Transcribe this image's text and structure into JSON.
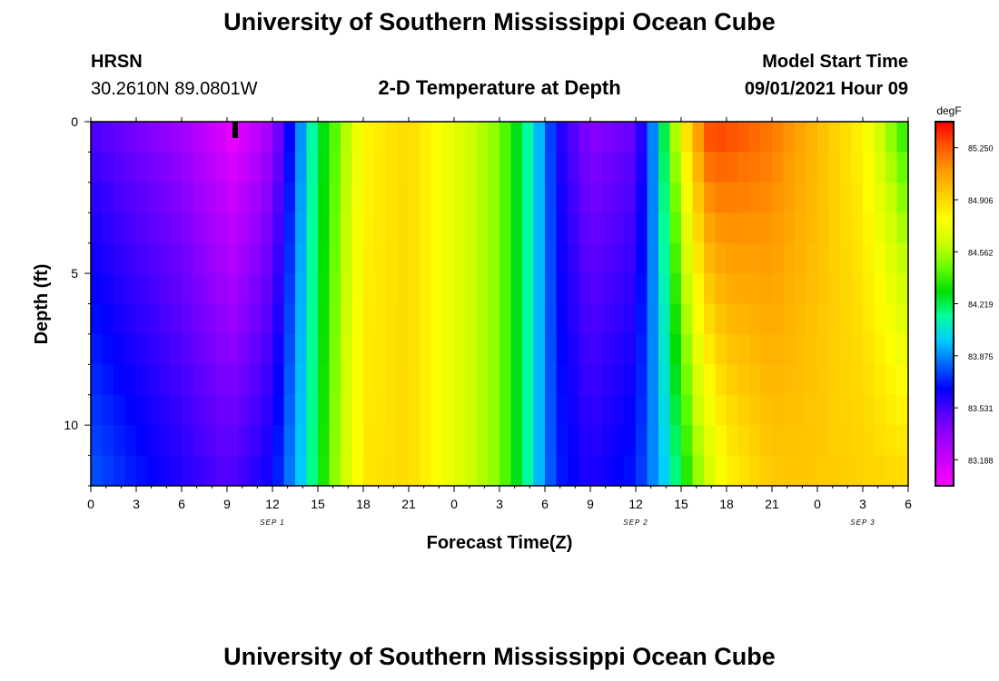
{
  "page": {
    "title_top": "University of Southern Mississippi Ocean Cube",
    "title_bottom": "University of Southern Mississippi Ocean Cube",
    "station_name": "HRSN",
    "station_coords": "30.2610N  89.0801W",
    "plot_title": "2-D Temperature at Depth",
    "model_start_label": "Model Start Time",
    "model_start_value": "09/01/2021 Hour 09"
  },
  "chart_data": {
    "type": "heatmap",
    "title": "2-D Temperature at Depth",
    "xlabel": "Forecast Time(Z)",
    "ylabel": "Depth (ft)",
    "x_range_hours": [
      0,
      54
    ],
    "y_range_ft": [
      0,
      12
    ],
    "x_tick_labels": [
      "0",
      "3",
      "6",
      "9",
      "12",
      "15",
      "18",
      "21",
      "0",
      "3",
      "6",
      "9",
      "12",
      "15",
      "18",
      "21",
      "0",
      "3",
      "6"
    ],
    "y_tick_labels": [
      "0",
      "5",
      "10"
    ],
    "y_tick_values": [
      0,
      5,
      10
    ],
    "date_labels": [
      {
        "text": "SEP 1",
        "hour": 12
      },
      {
        "text": "SEP 2",
        "hour": 36
      },
      {
        "text": "SEP 3",
        "hour": 51
      }
    ],
    "colorbar": {
      "unit": "degF",
      "min": 83.016,
      "max": 85.422,
      "tick_labels": [
        "83.188",
        "83.531",
        "83.875",
        "84.219",
        "84.562",
        "84.906",
        "85.250"
      ],
      "tick_values": [
        83.188,
        83.531,
        83.875,
        84.219,
        84.562,
        84.906,
        85.25
      ],
      "colors": [
        "#ff00ff",
        "#cc00ff",
        "#9900ff",
        "#5500ff",
        "#0000ff",
        "#0066ff",
        "#00ccff",
        "#00ff99",
        "#00dd00",
        "#66ff00",
        "#ccff00",
        "#ffff00",
        "#ffcc00",
        "#ff9900",
        "#ff5500",
        "#ff0000"
      ]
    },
    "surface_temperature_by_hour_degF": [
      {
        "hour": 0,
        "value": 83.5
      },
      {
        "hour": 6,
        "value": 83.3
      },
      {
        "hour": 9.5,
        "value": 83.05
      },
      {
        "hour": 12,
        "value": 83.3
      },
      {
        "hour": 13.5,
        "value": 83.75
      },
      {
        "hour": 14.5,
        "value": 84.1
      },
      {
        "hour": 16,
        "value": 84.4
      },
      {
        "hour": 18,
        "value": 84.8
      },
      {
        "hour": 21,
        "value": 84.9
      },
      {
        "hour": 24,
        "value": 84.7
      },
      {
        "hour": 27,
        "value": 84.5
      },
      {
        "hour": 29,
        "value": 84.1
      },
      {
        "hour": 30,
        "value": 83.85
      },
      {
        "hour": 31,
        "value": 83.6
      },
      {
        "hour": 33,
        "value": 83.35
      },
      {
        "hour": 36,
        "value": 83.45
      },
      {
        "hour": 37,
        "value": 83.8
      },
      {
        "hour": 38,
        "value": 84.3
      },
      {
        "hour": 39,
        "value": 84.8
      },
      {
        "hour": 40,
        "value": 85.1
      },
      {
        "hour": 41,
        "value": 85.35
      },
      {
        "hour": 45,
        "value": 85.2
      },
      {
        "hour": 48,
        "value": 85.0
      },
      {
        "hour": 51,
        "value": 84.8
      },
      {
        "hour": 54,
        "value": 84.3
      }
    ],
    "bottom_temperature_by_hour_degF": [
      {
        "hour": 0,
        "value": 83.8
      },
      {
        "hour": 6,
        "value": 83.6
      },
      {
        "hour": 9,
        "value": 83.5
      },
      {
        "hour": 12,
        "value": 83.65
      },
      {
        "hour": 14,
        "value": 84.0
      },
      {
        "hour": 16,
        "value": 84.5
      },
      {
        "hour": 18,
        "value": 84.85
      },
      {
        "hour": 21,
        "value": 84.9
      },
      {
        "hour": 24,
        "value": 84.7
      },
      {
        "hour": 27,
        "value": 84.5
      },
      {
        "hour": 29,
        "value": 84.1
      },
      {
        "hour": 30,
        "value": 83.85
      },
      {
        "hour": 31,
        "value": 83.7
      },
      {
        "hour": 33,
        "value": 83.6
      },
      {
        "hour": 36,
        "value": 83.7
      },
      {
        "hour": 38,
        "value": 84.0
      },
      {
        "hour": 40,
        "value": 84.5
      },
      {
        "hour": 42,
        "value": 84.8
      },
      {
        "hour": 45,
        "value": 84.95
      },
      {
        "hour": 48,
        "value": 84.95
      },
      {
        "hour": 54,
        "value": 84.9
      }
    ]
  }
}
